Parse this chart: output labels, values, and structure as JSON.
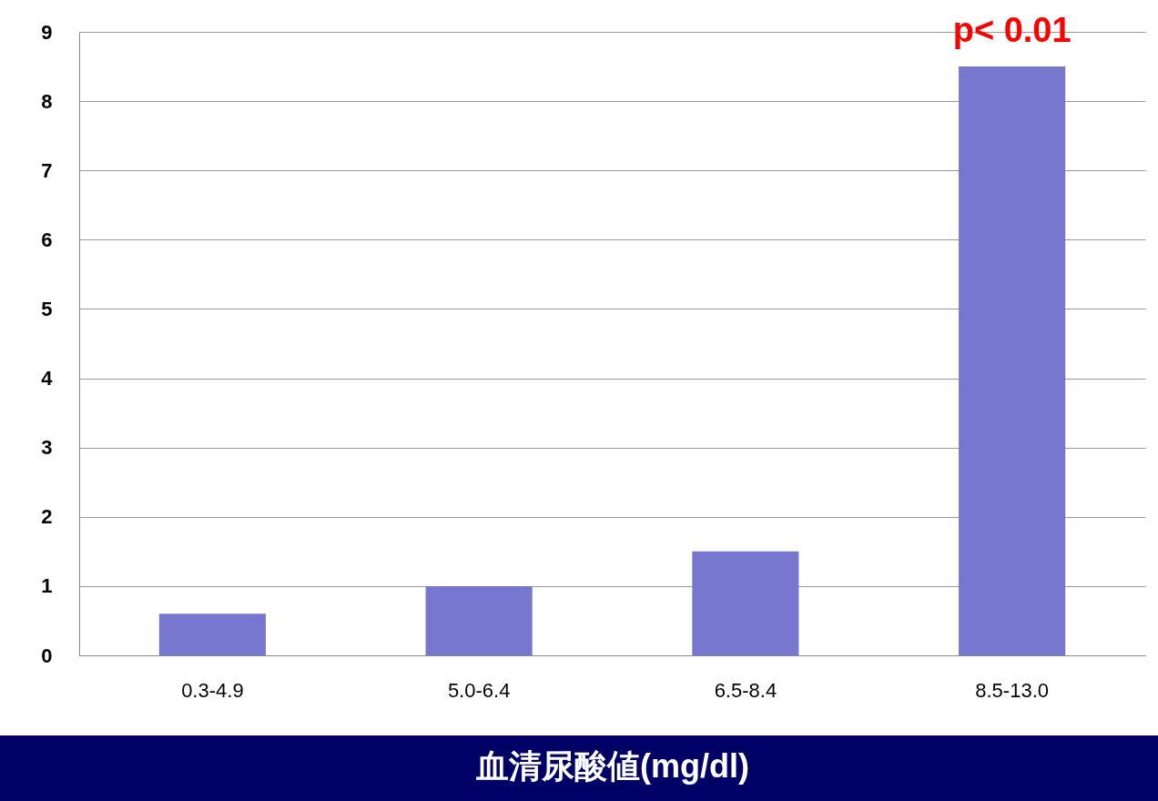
{
  "chart_data": {
    "type": "bar",
    "xlabel": "血清尿酸値(mg/dl)",
    "categories": [
      "0.3-4.9",
      "5.0-6.4",
      "6.5-8.4",
      "8.5-13.0"
    ],
    "series": [
      {
        "color": "#7777d0",
        "values": [
          0.6,
          1.0,
          1.5,
          8.5
        ]
      }
    ],
    "ylim": [
      0,
      9
    ],
    "yticks": [
      0,
      1,
      2,
      3,
      4,
      5,
      6,
      7,
      8,
      9
    ],
    "grid": "y",
    "annotations": [
      "p< 0.01"
    ]
  }
}
